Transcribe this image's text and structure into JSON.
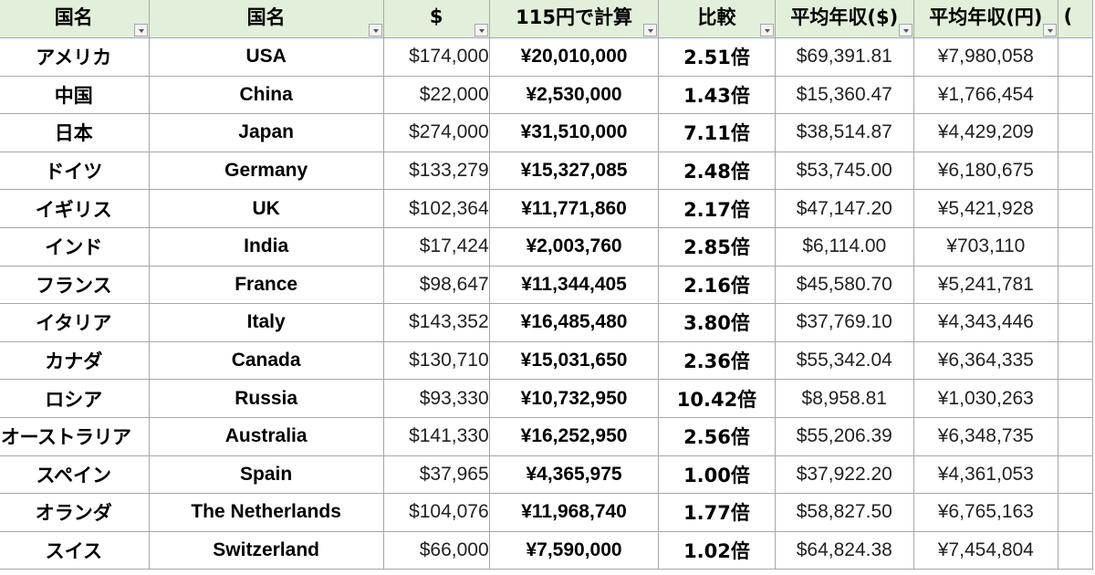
{
  "headers": [
    "国名",
    "国名",
    "$",
    "115円で計算",
    "比較",
    "平均年収($)",
    "平均年収(円)",
    "("
  ],
  "rows": [
    {
      "jp": "アメリカ",
      "en": "USA",
      "usd": "$174,000",
      "yen": "¥20,010,000",
      "ratio": "2.51倍",
      "avg_usd": "$69,391.81",
      "avg_yen": "¥7,980,058"
    },
    {
      "jp": "中国",
      "en": "China",
      "usd": "$22,000",
      "yen": "¥2,530,000",
      "ratio": "1.43倍",
      "avg_usd": "$15,360.47",
      "avg_yen": "¥1,766,454"
    },
    {
      "jp": "日本",
      "en": "Japan",
      "usd": "$274,000",
      "yen": "¥31,510,000",
      "ratio": "7.11倍",
      "avg_usd": "$38,514.87",
      "avg_yen": "¥4,429,209"
    },
    {
      "jp": "ドイツ",
      "en": "Germany",
      "usd": "$133,279",
      "yen": "¥15,327,085",
      "ratio": "2.48倍",
      "avg_usd": "$53,745.00",
      "avg_yen": "¥6,180,675"
    },
    {
      "jp": "イギリス",
      "en": "UK",
      "usd": "$102,364",
      "yen": "¥11,771,860",
      "ratio": "2.17倍",
      "avg_usd": "$47,147.20",
      "avg_yen": "¥5,421,928"
    },
    {
      "jp": "インド",
      "en": "India",
      "usd": "$17,424",
      "yen": "¥2,003,760",
      "ratio": "2.85倍",
      "avg_usd": "$6,114.00",
      "avg_yen": "¥703,110"
    },
    {
      "jp": "フランス",
      "en": "France",
      "usd": "$98,647",
      "yen": "¥11,344,405",
      "ratio": "2.16倍",
      "avg_usd": "$45,580.70",
      "avg_yen": "¥5,241,781"
    },
    {
      "jp": "イタリア",
      "en": "Italy",
      "usd": "$143,352",
      "yen": "¥16,485,480",
      "ratio": "3.80倍",
      "avg_usd": "$37,769.10",
      "avg_yen": "¥4,343,446"
    },
    {
      "jp": "カナダ",
      "en": "Canada",
      "usd": "$130,710",
      "yen": "¥15,031,650",
      "ratio": "2.36倍",
      "avg_usd": "$55,342.04",
      "avg_yen": "¥6,364,335"
    },
    {
      "jp": "ロシア",
      "en": "Russia",
      "usd": "$93,330",
      "yen": "¥10,732,950",
      "ratio": "10.42倍",
      "avg_usd": "$8,958.81",
      "avg_yen": "¥1,030,263"
    },
    {
      "jp": "オーストラリア",
      "en": "Australia",
      "usd": "$141,330",
      "yen": "¥16,252,950",
      "ratio": "2.56倍",
      "avg_usd": "$55,206.39",
      "avg_yen": "¥6,348,735"
    },
    {
      "jp": "スペイン",
      "en": "Spain",
      "usd": "$37,965",
      "yen": "¥4,365,975",
      "ratio": "1.00倍",
      "avg_usd": "$37,922.20",
      "avg_yen": "¥4,361,053"
    },
    {
      "jp": "オランダ",
      "en": "The Netherlands",
      "usd": "$104,076",
      "yen": "¥11,968,740",
      "ratio": "1.77倍",
      "avg_usd": "$58,827.50",
      "avg_yen": "¥6,765,163"
    },
    {
      "jp": "スイス",
      "en": "Switzerland",
      "usd": "$66,000",
      "yen": "¥7,590,000",
      "ratio": "1.02倍",
      "avg_usd": "$64,824.38",
      "avg_yen": "¥7,454,804"
    }
  ]
}
